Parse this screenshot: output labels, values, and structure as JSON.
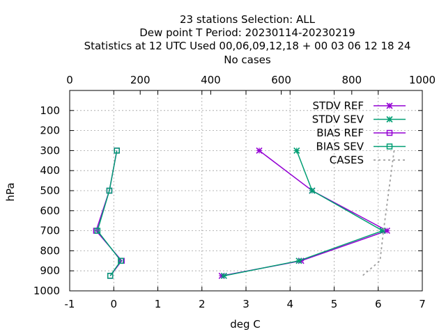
{
  "title_lines": [
    "23 stations Selection: ALL",
    "Dew point T  Period: 20230114-20230219",
    "Statistics at 12 UTC  Used  00,06,09,12,18  + 00 03 06 12 18 24",
    "No cases"
  ],
  "colors": {
    "purple": "#9400d3",
    "green": "#009e73",
    "cases": "#a0a0a0",
    "grid": "#a0a0a0",
    "axis": "#000000"
  },
  "chart_data": {
    "type": "line",
    "xlabel": "deg C",
    "ylabel": "hPa",
    "x2label": "",
    "xlim": [
      -1,
      7
    ],
    "x2lim": [
      0,
      1000
    ],
    "ylim": [
      1000,
      0
    ],
    "x_ticks": [
      -1,
      0,
      1,
      2,
      3,
      4,
      5,
      6,
      7
    ],
    "x2_ticks": [
      0,
      200,
      400,
      600,
      800,
      1000
    ],
    "y_ticks": [
      100,
      200,
      300,
      400,
      500,
      600,
      700,
      800,
      900,
      1000
    ],
    "grid": true,
    "legend_position": "top-right",
    "series": [
      {
        "name": "STDV REF",
        "color": "#9400d3",
        "marker": "cross-x",
        "points": [
          [
            3.3,
            300
          ],
          [
            4.5,
            500
          ],
          [
            6.2,
            700
          ],
          [
            4.25,
            850
          ],
          [
            2.45,
            925
          ]
        ]
      },
      {
        "name": "STDV SEV",
        "color": "#009e73",
        "marker": "cross-x",
        "points": [
          [
            4.15,
            300
          ],
          [
            4.5,
            500
          ],
          [
            6.1,
            700
          ],
          [
            4.2,
            850
          ],
          [
            2.5,
            925
          ]
        ]
      },
      {
        "name": "BIAS REF",
        "color": "#9400d3",
        "marker": "square",
        "points": [
          [
            0.07,
            300
          ],
          [
            -0.1,
            500
          ],
          [
            -0.4,
            700
          ],
          [
            0.18,
            850
          ],
          [
            -0.08,
            925
          ]
        ]
      },
      {
        "name": "BIAS SEV",
        "color": "#009e73",
        "marker": "square",
        "points": [
          [
            0.07,
            300
          ],
          [
            -0.1,
            500
          ],
          [
            -0.37,
            700
          ],
          [
            0.16,
            850
          ],
          [
            -0.08,
            925
          ]
        ]
      },
      {
        "name": "CASES",
        "color": "#a0a0a0",
        "marker": "none",
        "dashed": true,
        "axis": "x2",
        "points": [
          [
            920,
            300
          ],
          [
            905,
            500
          ],
          [
            890,
            700
          ],
          [
            880,
            850
          ],
          [
            830,
            925
          ]
        ]
      }
    ]
  }
}
